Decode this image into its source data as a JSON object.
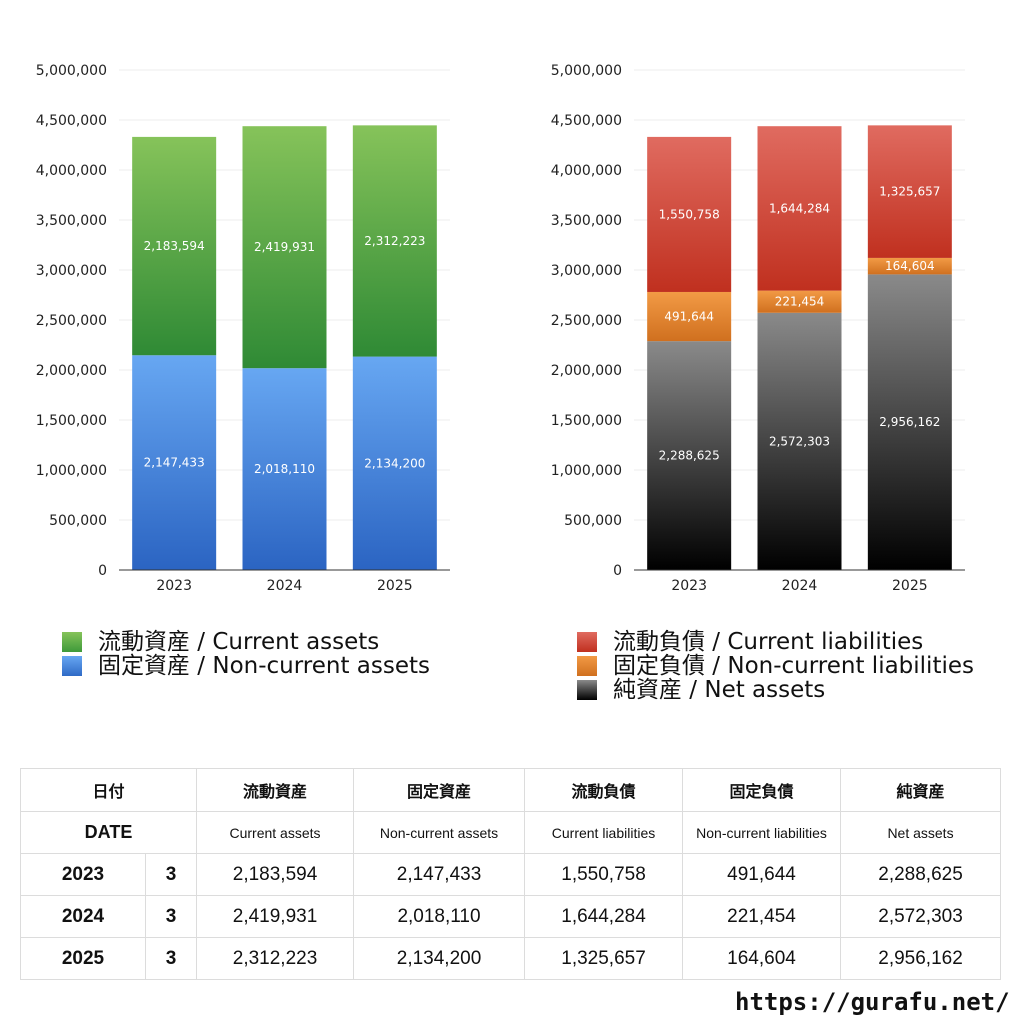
{
  "chart_data": [
    {
      "type": "bar",
      "stacked": true,
      "categories": [
        "2023",
        "2024",
        "2025"
      ],
      "ylim": [
        0,
        5000000
      ],
      "yticks": [
        "0",
        "500,000",
        "1,000,000",
        "1,500,000",
        "2,000,000",
        "2,500,000",
        "3,000,000",
        "3,500,000",
        "4,000,000",
        "4,500,000",
        "5,000,000"
      ],
      "grid": true,
      "legend_position": "bottom",
      "series": [
        {
          "name": "固定資産 / Non-current assets",
          "values": [
            2147433,
            2018110,
            2134200
          ],
          "labels": [
            "2,147,433",
            "2,018,110",
            "2,134,200"
          ],
          "color_top": "#67a7f2",
          "color_bottom": "#2b64c2"
        },
        {
          "name": "流動資産 / Current assets",
          "values": [
            2183594,
            2419931,
            2312223
          ],
          "labels": [
            "2,183,594",
            "2,419,931",
            "2,312,223"
          ],
          "color_top": "#86c35a",
          "color_bottom": "#2f8a35"
        }
      ]
    },
    {
      "type": "bar",
      "stacked": true,
      "categories": [
        "2023",
        "2024",
        "2025"
      ],
      "ylim": [
        0,
        5000000
      ],
      "yticks": [
        "0",
        "500,000",
        "1,000,000",
        "1,500,000",
        "2,000,000",
        "2,500,000",
        "3,000,000",
        "3,500,000",
        "4,000,000",
        "4,500,000",
        "5,000,000"
      ],
      "grid": true,
      "legend_position": "bottom",
      "series": [
        {
          "name": "純資産 / Net assets",
          "values": [
            2288625,
            2572303,
            2956162
          ],
          "labels": [
            "2,288,625",
            "2,572,303",
            "2,956,162"
          ],
          "color_top": "#8a8a8a",
          "color_bottom": "#000000"
        },
        {
          "name": "固定負債 / Non-current liabilities",
          "values": [
            491644,
            221454,
            164604
          ],
          "labels": [
            "491,644",
            "221,454",
            "164,604"
          ],
          "color_top": "#f29a45",
          "color_bottom": "#d0701f"
        },
        {
          "name": "流動負債 / Current liabilities",
          "values": [
            1550758,
            1644284,
            1325657
          ],
          "labels": [
            "1,550,758",
            "1,644,284",
            "1,325,657"
          ],
          "color_top": "#e06b60",
          "color_bottom": "#c0301f"
        }
      ]
    }
  ],
  "legend_assets": [
    {
      "label": "流動資産 / Current assets",
      "color": "#5cae46"
    },
    {
      "label": "固定資産 / Non-current assets",
      "color": "#4a8ce0"
    }
  ],
  "legend_liabilities": [
    {
      "label": "流動負債 / Current liabilities",
      "color": "#d9463a"
    },
    {
      "label": "固定負債 / Non-current liabilities",
      "color": "#e8892e"
    },
    {
      "label": "純資産 / Net assets",
      "color": "#2a2a2a"
    }
  ],
  "table": {
    "header_jp": [
      "日付",
      "流動資産",
      "固定資産",
      "流動負債",
      "固定負債",
      "純資産"
    ],
    "header_en": [
      "DATE",
      "Current assets",
      "Non-current assets",
      "Current liabilities",
      "Non-current liabilities",
      "Net assets"
    ],
    "rows": [
      {
        "year": "2023",
        "month": "3",
        "values": [
          "2,183,594",
          "2,147,433",
          "1,550,758",
          "491,644",
          "2,288,625"
        ]
      },
      {
        "year": "2024",
        "month": "3",
        "values": [
          "2,419,931",
          "2,018,110",
          "1,644,284",
          "221,454",
          "2,572,303"
        ]
      },
      {
        "year": "2025",
        "month": "3",
        "values": [
          "2,312,223",
          "2,134,200",
          "1,325,657",
          "164,604",
          "2,956,162"
        ]
      }
    ]
  },
  "source_url": "https://gurafu.net/"
}
